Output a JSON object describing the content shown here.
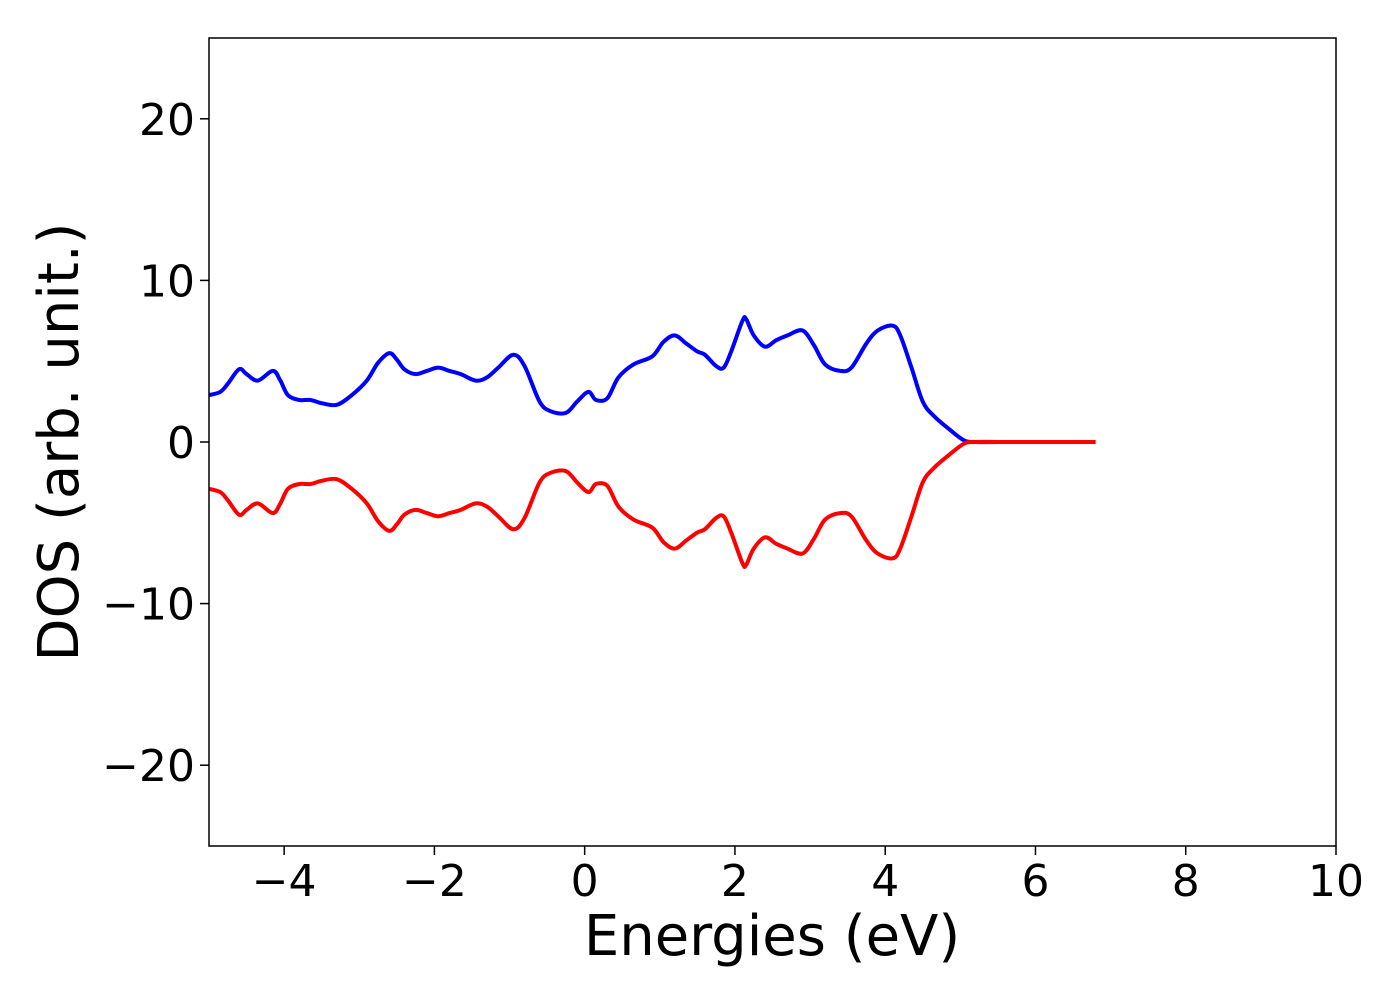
{
  "chart_data": {
    "type": "line",
    "title": "",
    "xlabel": "Energies (eV)",
    "ylabel": "DOS (arb. unit.)",
    "xlim": [
      -5,
      10
    ],
    "ylim": [
      -25,
      25
    ],
    "xticks": [
      -4,
      -2,
      0,
      2,
      4,
      6,
      8,
      10
    ],
    "xtick_labels": [
      "−4",
      "−2",
      "0",
      "2",
      "4",
      "6",
      "8",
      "10"
    ],
    "yticks": [
      20,
      10,
      0,
      -10,
      -20
    ],
    "ytick_labels": [
      "20",
      "10",
      "0",
      "−10",
      "−20"
    ],
    "grid": false,
    "legend": "none",
    "series": [
      {
        "color": "#0000ff",
        "x": [
          -5.0,
          -4.85,
          -4.75,
          -4.6,
          -4.5,
          -4.35,
          -4.15,
          -4.05,
          -3.95,
          -3.8,
          -3.65,
          -3.5,
          -3.3,
          -3.1,
          -2.9,
          -2.75,
          -2.6,
          -2.5,
          -2.4,
          -2.25,
          -2.1,
          -1.95,
          -1.8,
          -1.65,
          -1.45,
          -1.3,
          -1.15,
          -0.95,
          -0.8,
          -0.6,
          -0.45,
          -0.25,
          -0.1,
          0.05,
          0.15,
          0.3,
          0.45,
          0.65,
          0.9,
          1.05,
          1.2,
          1.35,
          1.5,
          1.6,
          1.75,
          1.85,
          1.95,
          2.1,
          2.15,
          2.25,
          2.4,
          2.55,
          2.7,
          2.9,
          3.05,
          3.2,
          3.4,
          3.55,
          3.75,
          3.9,
          4.1,
          4.2,
          4.35,
          4.5,
          4.65,
          4.85,
          5.05,
          5.2,
          5.5,
          6.0,
          6.5,
          6.8
        ],
        "values": [
          2.9,
          3.1,
          3.6,
          4.5,
          4.2,
          3.8,
          4.4,
          3.8,
          2.9,
          2.6,
          2.6,
          2.4,
          2.3,
          2.9,
          3.8,
          4.9,
          5.5,
          5.1,
          4.5,
          4.2,
          4.4,
          4.6,
          4.4,
          4.2,
          3.8,
          4.0,
          4.6,
          5.4,
          4.7,
          2.5,
          1.9,
          1.8,
          2.5,
          3.1,
          2.6,
          2.7,
          4.0,
          4.8,
          5.3,
          6.2,
          6.6,
          6.1,
          5.6,
          5.4,
          4.7,
          4.6,
          5.6,
          7.5,
          7.6,
          6.6,
          5.9,
          6.3,
          6.6,
          6.9,
          6.0,
          4.8,
          4.4,
          4.6,
          6.1,
          6.9,
          7.2,
          6.6,
          4.6,
          2.5,
          1.6,
          0.8,
          0.1,
          0.0,
          0.0,
          0.0,
          0.0,
          0.0
        ]
      },
      {
        "color": "#ff0000",
        "x": [
          -5.0,
          -4.85,
          -4.75,
          -4.6,
          -4.5,
          -4.35,
          -4.15,
          -4.05,
          -3.95,
          -3.8,
          -3.65,
          -3.5,
          -3.3,
          -3.1,
          -2.9,
          -2.75,
          -2.6,
          -2.5,
          -2.4,
          -2.25,
          -2.1,
          -1.95,
          -1.8,
          -1.65,
          -1.45,
          -1.3,
          -1.15,
          -0.95,
          -0.8,
          -0.6,
          -0.45,
          -0.25,
          -0.1,
          0.05,
          0.15,
          0.3,
          0.45,
          0.65,
          0.9,
          1.05,
          1.2,
          1.35,
          1.5,
          1.6,
          1.75,
          1.85,
          1.95,
          2.1,
          2.15,
          2.25,
          2.4,
          2.55,
          2.7,
          2.9,
          3.05,
          3.2,
          3.4,
          3.55,
          3.75,
          3.9,
          4.1,
          4.2,
          4.35,
          4.5,
          4.65,
          4.85,
          5.05,
          5.2,
          5.5,
          6.0,
          6.5,
          6.8
        ],
        "values": [
          -2.9,
          -3.1,
          -3.6,
          -4.5,
          -4.2,
          -3.8,
          -4.4,
          -3.8,
          -2.9,
          -2.6,
          -2.6,
          -2.4,
          -2.3,
          -2.9,
          -3.8,
          -4.9,
          -5.5,
          -5.1,
          -4.5,
          -4.2,
          -4.4,
          -4.6,
          -4.4,
          -4.2,
          -3.8,
          -4.0,
          -4.6,
          -5.4,
          -4.7,
          -2.5,
          -1.9,
          -1.8,
          -2.5,
          -3.1,
          -2.6,
          -2.7,
          -4.0,
          -4.8,
          -5.3,
          -6.2,
          -6.6,
          -6.1,
          -5.6,
          -5.4,
          -4.7,
          -4.6,
          -5.6,
          -7.5,
          -7.6,
          -6.6,
          -5.9,
          -6.3,
          -6.6,
          -6.9,
          -6.0,
          -4.8,
          -4.4,
          -4.6,
          -6.1,
          -6.9,
          -7.2,
          -6.6,
          -4.6,
          -2.5,
          -1.6,
          -0.8,
          -0.1,
          0.0,
          0.0,
          0.0,
          0.0,
          0.0
        ]
      }
    ]
  }
}
